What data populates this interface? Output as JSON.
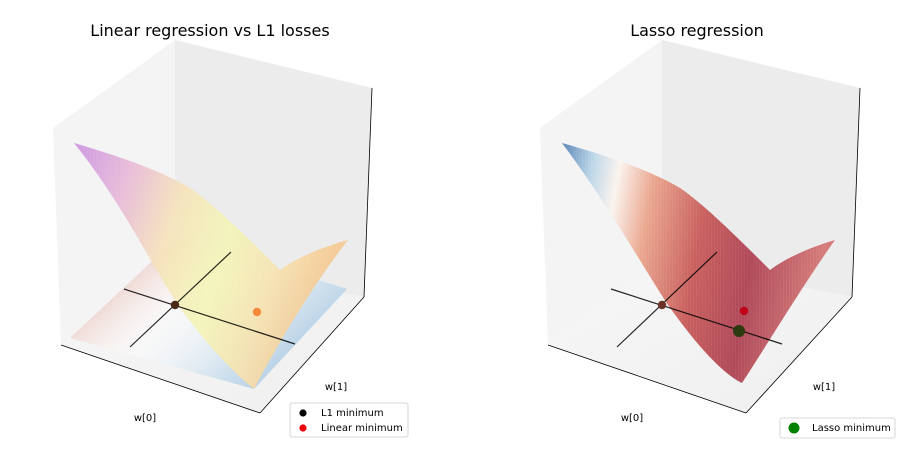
{
  "chart_data": [
    {
      "type": "surface3d",
      "title": "Linear regression vs L1 losses",
      "xlabel": "w[0]",
      "ylabel": "w[1]",
      "surfaces": [
        "linear regression loss",
        "L1 loss"
      ],
      "points": [
        {
          "name": "L1 minimum",
          "color": "#000000",
          "w": [
            0,
            0
          ]
        },
        {
          "name": "Linear minimum",
          "color": "#e8000b",
          "w": [
            0.45,
            -0.15
          ]
        }
      ],
      "legend": {
        "placement": "lower-right",
        "entries": [
          "L1 minimum",
          "Linear minimum"
        ],
        "colors": [
          "#000000",
          "#e8000b"
        ]
      },
      "grid": false,
      "colormaps": [
        "purple-yellow-orange",
        "blue-white-red"
      ]
    },
    {
      "type": "surface3d",
      "title": "Lasso regression",
      "xlabel": "w[0]",
      "ylabel": "w[1]",
      "surfaces": [
        "lasso loss"
      ],
      "points": [
        {
          "name": "Lasso minimum",
          "color": "#008000",
          "w": [
            0.45,
            -0.4
          ]
        },
        {
          "name": "",
          "color": "#e8000b",
          "w": [
            0.45,
            -0.15
          ]
        }
      ],
      "legend": {
        "placement": "lower-right",
        "entries": [
          "Lasso minimum"
        ],
        "colors": [
          "#008000"
        ]
      },
      "grid": false,
      "colormaps": [
        "blue-white-red"
      ]
    }
  ]
}
